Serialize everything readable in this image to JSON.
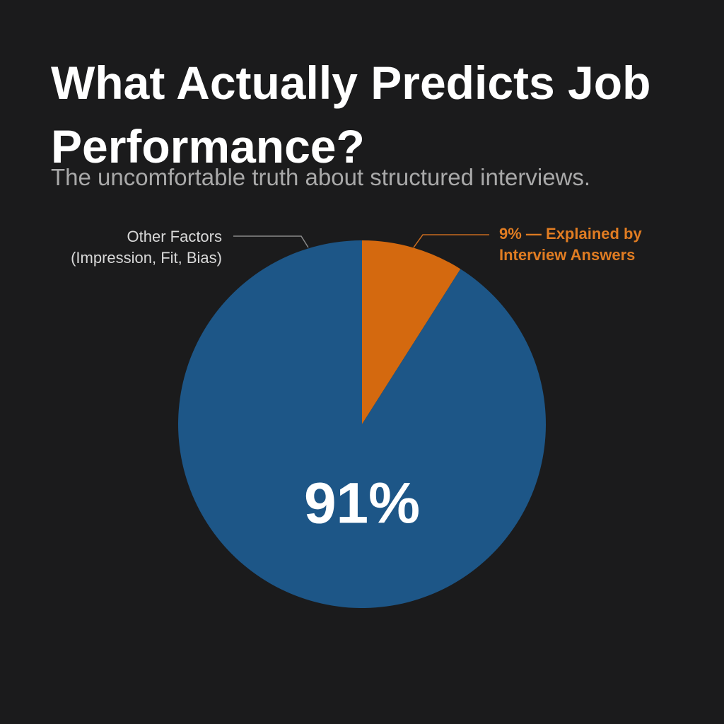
{
  "chart_data": {
    "type": "pie",
    "title": "What Actually Predicts Job Performance?",
    "subtitle": "The uncomfortable truth about structured interviews.",
    "categories": [
      "Other Factors (Impression, Fit, Bias)",
      "9% — Explained by Interview Answers"
    ],
    "values": [
      91,
      9
    ],
    "value_labels": [
      "91%",
      null
    ],
    "colors": [
      "#1d5687",
      "#d4690f"
    ],
    "label_colors": [
      "#d8d8d8",
      "#e07c22"
    ]
  }
}
